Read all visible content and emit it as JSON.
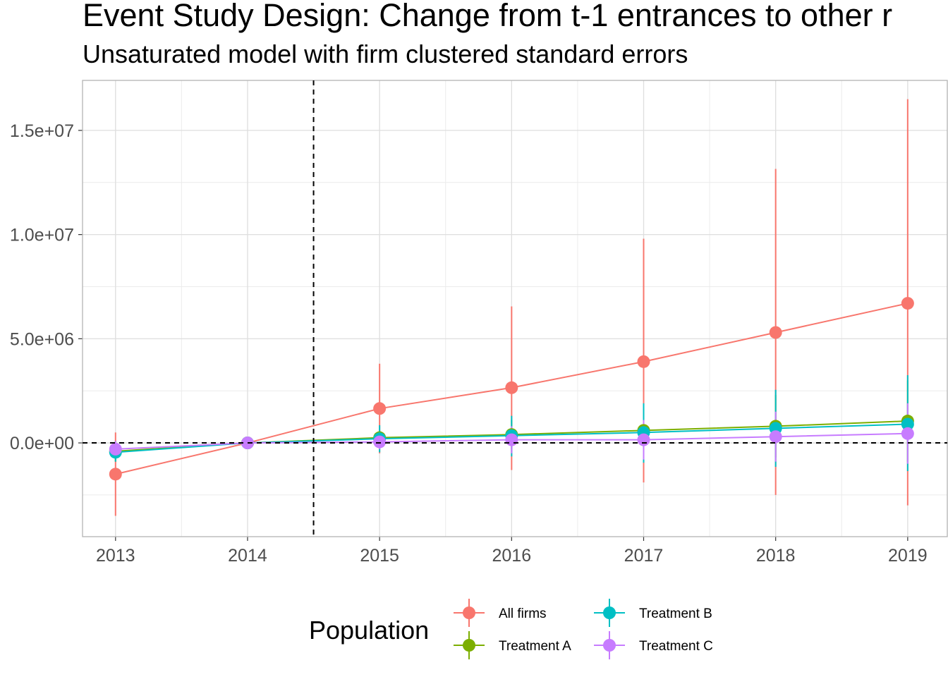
{
  "chart_data": {
    "type": "line",
    "title": "Event Study Design: Change from t-1 entrances to other r",
    "subtitle": "Unsaturated model with firm clustered standard errors",
    "xlabel": "",
    "ylabel": "",
    "x": [
      2013,
      2014,
      2015,
      2016,
      2017,
      2018,
      2019
    ],
    "x_tick_labels": [
      "2013",
      "2014",
      "2015",
      "2016",
      "2017",
      "2018",
      "2019"
    ],
    "y_ticks": [
      0,
      5000000,
      10000000,
      15000000
    ],
    "y_tick_labels": [
      "0.0e+00",
      "5.0e+06",
      "1.0e+07",
      "1.5e+07"
    ],
    "xlim": [
      2012.75,
      2019.3
    ],
    "ylim": [
      -4500000,
      17400000
    ],
    "reference_lines": {
      "vertical_x": 2014.5,
      "horizontal_y": 0,
      "style": "dashed"
    },
    "grid": true,
    "legend": {
      "title": "Population",
      "position": "bottom"
    },
    "series": [
      {
        "name": "All firms",
        "color": "#F8766D",
        "values": [
          -1500000,
          0,
          1650000,
          2650000,
          3900000,
          5300000,
          6700000
        ],
        "lower": [
          -3500000,
          0,
          -500000,
          -1300000,
          -1900000,
          -2500000,
          -3000000
        ],
        "upper": [
          500000,
          0,
          3800000,
          6550000,
          9800000,
          13150000,
          16500000
        ]
      },
      {
        "name": "Treatment A",
        "color": "#7CAE00",
        "values": [
          -400000,
          0,
          250000,
          400000,
          600000,
          800000,
          1050000
        ],
        "lower": [
          -900000,
          0,
          -100000,
          -300000,
          -500000,
          -700000,
          -900000
        ],
        "upper": [
          100000,
          0,
          600000,
          1100000,
          1700000,
          2300000,
          3000000
        ]
      },
      {
        "name": "Treatment B",
        "color": "#00BFC4",
        "values": [
          -450000,
          0,
          200000,
          350000,
          500000,
          700000,
          900000
        ],
        "lower": [
          -900000,
          0,
          -450000,
          -650000,
          -950000,
          -1150000,
          -1350000
        ],
        "upper": [
          0,
          0,
          850000,
          1300000,
          1900000,
          2550000,
          3250000
        ]
      },
      {
        "name": "Treatment C",
        "color": "#C77CFF",
        "values": [
          -300000,
          0,
          50000,
          150000,
          150000,
          300000,
          450000
        ],
        "lower": [
          -700000,
          0,
          -300000,
          -500000,
          -800000,
          -900000,
          -1000000
        ],
        "upper": [
          100000,
          0,
          400000,
          800000,
          1100000,
          1500000,
          1900000
        ]
      }
    ]
  }
}
